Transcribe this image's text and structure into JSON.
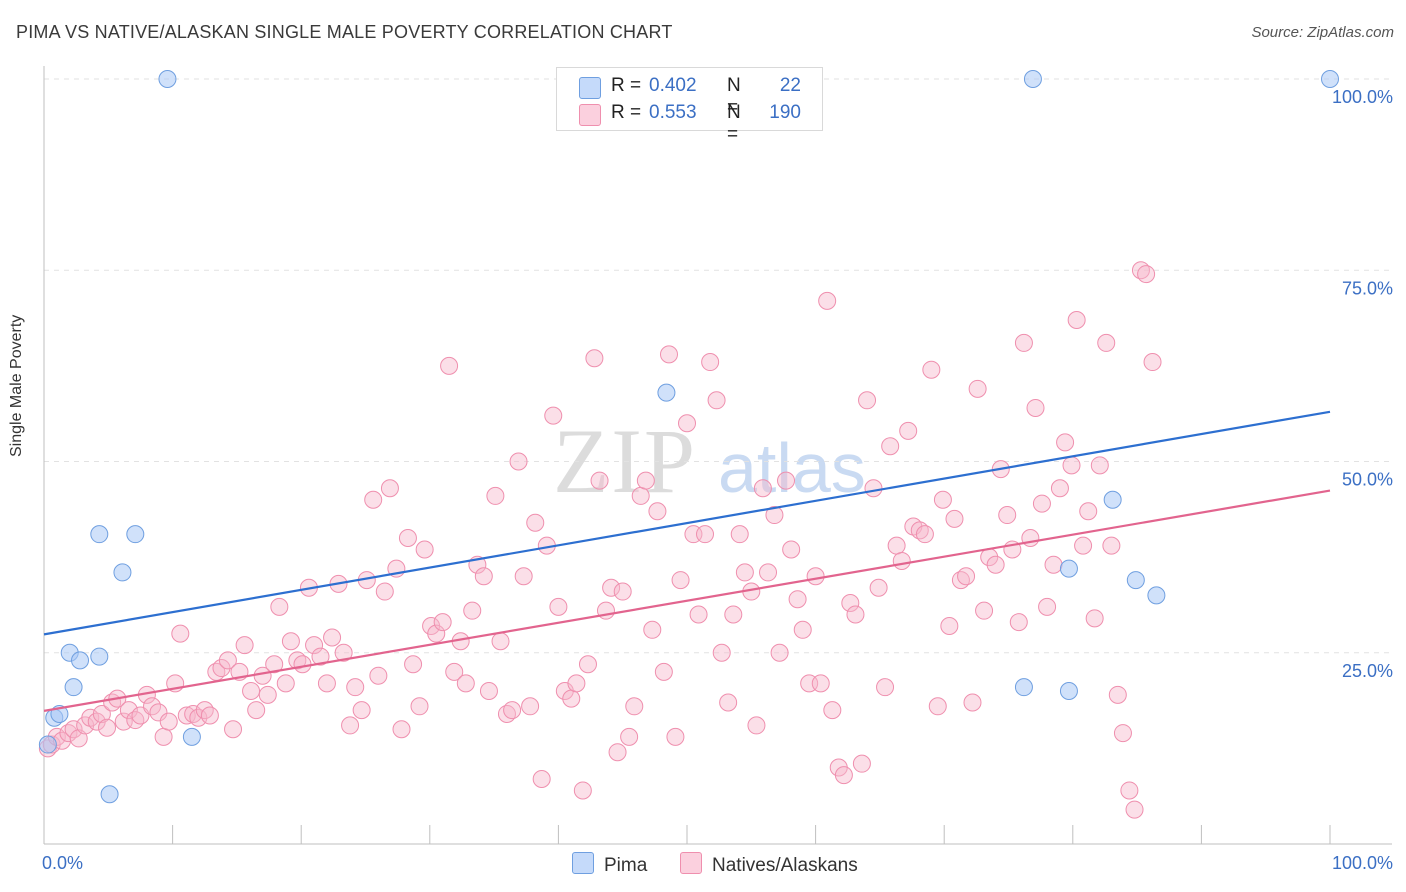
{
  "title": "PIMA VS NATIVE/ALASKAN SINGLE MALE POVERTY CORRELATION CHART",
  "source": "Source: ZipAtlas.com",
  "watermark": {
    "zip": "ZIP",
    "atlas": "atlas"
  },
  "legend_top": {
    "rows": [
      {
        "r_label": "R =",
        "r_value": "0.402",
        "n_label": "N =",
        "n_value": "22",
        "color": "#a9c8f5"
      },
      {
        "r_label": "R =",
        "r_value": "0.553",
        "n_label": "N =",
        "n_value": "190",
        "color": "#f7b8cc"
      }
    ]
  },
  "legend_bottom": [
    {
      "label": "Pima",
      "color": "#a9c8f5"
    },
    {
      "label": "Natives/Alaskans",
      "color": "#f7b8cc"
    }
  ],
  "chart_data": {
    "type": "scatter",
    "title": "PIMA VS NATIVE/ALASKAN SINGLE MALE POVERTY CORRELATION CHART",
    "xlabel": "",
    "ylabel": "Single Male Poverty",
    "xlim": [
      0,
      100
    ],
    "ylim": [
      0,
      100
    ],
    "x_tick_labels": [
      "0.0%",
      "100.0%"
    ],
    "y_tick_labels": [
      "25.0%",
      "50.0%",
      "75.0%",
      "100.0%"
    ],
    "y_ticks": [
      25,
      50,
      75,
      100
    ],
    "grid": true,
    "legend_position": "top-center",
    "series": [
      {
        "name": "Pima",
        "color": "#a9c8f5",
        "edge": "#6f9fe0",
        "line_color": "#2d6fd0",
        "trend": [
          [
            0,
            27.4
          ],
          [
            100,
            56.5
          ]
        ],
        "points": [
          [
            0.3,
            13
          ],
          [
            0.8,
            16.5
          ],
          [
            1.2,
            17
          ],
          [
            2.0,
            25
          ],
          [
            2.3,
            20.5
          ],
          [
            2.8,
            24
          ],
          [
            4.3,
            40.5
          ],
          [
            4.3,
            24.5
          ],
          [
            5.1,
            6.5
          ],
          [
            6.1,
            35.5
          ],
          [
            7.1,
            40.5
          ],
          [
            9.6,
            100
          ],
          [
            11.5,
            14
          ],
          [
            48.4,
            59
          ],
          [
            76.9,
            100
          ],
          [
            76.2,
            20.5
          ],
          [
            79.7,
            20
          ],
          [
            79.7,
            36
          ],
          [
            83.1,
            45
          ],
          [
            84.9,
            34.5
          ],
          [
            86.5,
            32.5
          ],
          [
            100,
            100
          ]
        ]
      },
      {
        "name": "Natives/Alaskans",
        "color": "#f7b8cc",
        "edge": "#ef8fae",
        "line_color": "#e2648e",
        "trend": [
          [
            0,
            17.4
          ],
          [
            100,
            46.2
          ]
        ],
        "points": [
          [
            0.3,
            12.5
          ],
          [
            0.6,
            13.0
          ],
          [
            1.0,
            14.0
          ],
          [
            1.4,
            13.5
          ],
          [
            1.9,
            14.5
          ],
          [
            2.3,
            15.0
          ],
          [
            2.7,
            13.8
          ],
          [
            3.2,
            15.5
          ],
          [
            3.6,
            16.5
          ],
          [
            4.1,
            16.0
          ],
          [
            4.5,
            17.0
          ],
          [
            4.9,
            15.2
          ],
          [
            5.3,
            18.5
          ],
          [
            5.7,
            19.0
          ],
          [
            6.2,
            16.0
          ],
          [
            6.6,
            17.5
          ],
          [
            7.1,
            16.2
          ],
          [
            7.5,
            16.8
          ],
          [
            8.0,
            19.5
          ],
          [
            8.4,
            18.0
          ],
          [
            8.9,
            17.2
          ],
          [
            9.3,
            14.0
          ],
          [
            9.7,
            16.0
          ],
          [
            10.2,
            21.0
          ],
          [
            10.6,
            27.5
          ],
          [
            11.1,
            16.8
          ],
          [
            11.6,
            17.0
          ],
          [
            12.0,
            16.5
          ],
          [
            12.5,
            17.5
          ],
          [
            12.9,
            16.8
          ],
          [
            13.4,
            22.5
          ],
          [
            13.8,
            23.0
          ],
          [
            14.3,
            24.0
          ],
          [
            14.7,
            15.0
          ],
          [
            15.2,
            22.5
          ],
          [
            15.6,
            26.0
          ],
          [
            16.1,
            20.0
          ],
          [
            16.5,
            17.5
          ],
          [
            17.0,
            22.0
          ],
          [
            17.4,
            19.5
          ],
          [
            17.9,
            23.5
          ],
          [
            18.3,
            31.0
          ],
          [
            18.8,
            21.0
          ],
          [
            19.2,
            26.5
          ],
          [
            19.7,
            24.0
          ],
          [
            20.1,
            23.5
          ],
          [
            20.6,
            33.5
          ],
          [
            21.0,
            26.0
          ],
          [
            21.5,
            24.5
          ],
          [
            22.0,
            21.0
          ],
          [
            22.4,
            27.0
          ],
          [
            22.9,
            34.0
          ],
          [
            23.3,
            25.0
          ],
          [
            23.8,
            15.5
          ],
          [
            24.2,
            20.5
          ],
          [
            24.7,
            17.5
          ],
          [
            25.1,
            34.5
          ],
          [
            25.6,
            45.0
          ],
          [
            26.0,
            22.0
          ],
          [
            26.5,
            33.0
          ],
          [
            26.9,
            46.5
          ],
          [
            27.4,
            36.0
          ],
          [
            27.8,
            15.0
          ],
          [
            28.3,
            40.0
          ],
          [
            28.7,
            23.5
          ],
          [
            29.2,
            18.0
          ],
          [
            29.6,
            38.5
          ],
          [
            30.1,
            28.5
          ],
          [
            30.5,
            27.5
          ],
          [
            31.0,
            29.0
          ],
          [
            31.5,
            62.5
          ],
          [
            31.9,
            22.5
          ],
          [
            32.4,
            26.5
          ],
          [
            32.8,
            21.0
          ],
          [
            33.3,
            30.5
          ],
          [
            33.7,
            36.5
          ],
          [
            34.2,
            35.0
          ],
          [
            34.6,
            20.0
          ],
          [
            35.1,
            45.5
          ],
          [
            35.5,
            26.5
          ],
          [
            36.0,
            17.0
          ],
          [
            36.4,
            17.5
          ],
          [
            36.9,
            50.0
          ],
          [
            37.3,
            35.0
          ],
          [
            37.8,
            18.0
          ],
          [
            38.2,
            42.0
          ],
          [
            38.7,
            8.5
          ],
          [
            39.1,
            39.0
          ],
          [
            39.6,
            56.0
          ],
          [
            40.0,
            31.0
          ],
          [
            40.5,
            20.0
          ],
          [
            41.0,
            19.0
          ],
          [
            41.4,
            21.0
          ],
          [
            41.9,
            7.0
          ],
          [
            42.3,
            23.5
          ],
          [
            42.8,
            63.5
          ],
          [
            43.2,
            47.5
          ],
          [
            43.7,
            30.5
          ],
          [
            44.1,
            33.5
          ],
          [
            44.6,
            12.0
          ],
          [
            45.0,
            33.0
          ],
          [
            45.5,
            14.0
          ],
          [
            45.9,
            18.0
          ],
          [
            46.4,
            45.5
          ],
          [
            46.8,
            47.5
          ],
          [
            47.3,
            28.0
          ],
          [
            47.7,
            43.5
          ],
          [
            48.2,
            22.5
          ],
          [
            48.6,
            64.0
          ],
          [
            49.1,
            14.0
          ],
          [
            49.5,
            34.5
          ],
          [
            50.0,
            55.0
          ],
          [
            50.5,
            40.5
          ],
          [
            50.9,
            30.0
          ],
          [
            51.4,
            40.5
          ],
          [
            51.8,
            63.0
          ],
          [
            52.3,
            58.0
          ],
          [
            52.7,
            25.0
          ],
          [
            53.2,
            18.5
          ],
          [
            53.6,
            30.0
          ],
          [
            54.1,
            40.5
          ],
          [
            54.5,
            35.5
          ],
          [
            55.0,
            33.0
          ],
          [
            55.4,
            15.5
          ],
          [
            55.9,
            46.5
          ],
          [
            56.3,
            35.5
          ],
          [
            56.8,
            43.0
          ],
          [
            57.2,
            25.0
          ],
          [
            57.7,
            47.5
          ],
          [
            58.1,
            38.5
          ],
          [
            58.6,
            32.0
          ],
          [
            59.0,
            28.0
          ],
          [
            59.5,
            21.0
          ],
          [
            60.0,
            35.0
          ],
          [
            60.4,
            21.0
          ],
          [
            60.9,
            71.0
          ],
          [
            61.3,
            17.5
          ],
          [
            61.8,
            10.0
          ],
          [
            62.2,
            9.0
          ],
          [
            62.7,
            31.5
          ],
          [
            63.1,
            30.0
          ],
          [
            63.6,
            10.5
          ],
          [
            64.0,
            58.0
          ],
          [
            64.5,
            46.5
          ],
          [
            64.9,
            33.5
          ],
          [
            65.4,
            20.5
          ],
          [
            65.8,
            52.0
          ],
          [
            66.3,
            39.0
          ],
          [
            66.7,
            37.0
          ],
          [
            67.2,
            54.0
          ],
          [
            67.6,
            41.5
          ],
          [
            68.1,
            41.0
          ],
          [
            68.5,
            40.5
          ],
          [
            69.0,
            62.0
          ],
          [
            69.5,
            18.0
          ],
          [
            69.9,
            45.0
          ],
          [
            70.4,
            28.5
          ],
          [
            70.8,
            42.5
          ],
          [
            71.3,
            34.5
          ],
          [
            71.7,
            35.0
          ],
          [
            72.2,
            18.5
          ],
          [
            72.6,
            59.5
          ],
          [
            73.1,
            30.5
          ],
          [
            73.5,
            37.5
          ],
          [
            74.0,
            36.5
          ],
          [
            74.4,
            49.0
          ],
          [
            74.9,
            43.0
          ],
          [
            75.3,
            38.5
          ],
          [
            75.8,
            29.0
          ],
          [
            76.2,
            65.5
          ],
          [
            76.7,
            40.0
          ],
          [
            77.1,
            57.0
          ],
          [
            77.6,
            44.5
          ],
          [
            78.0,
            31.0
          ],
          [
            78.5,
            36.5
          ],
          [
            79.0,
            46.5
          ],
          [
            79.4,
            52.5
          ],
          [
            79.9,
            49.5
          ],
          [
            80.3,
            68.5
          ],
          [
            80.8,
            39.0
          ],
          [
            81.2,
            43.5
          ],
          [
            81.7,
            29.5
          ],
          [
            82.1,
            49.5
          ],
          [
            82.6,
            65.5
          ],
          [
            83.0,
            39.0
          ],
          [
            83.5,
            19.5
          ],
          [
            83.9,
            14.5
          ],
          [
            84.4,
            7.0
          ],
          [
            84.8,
            4.5
          ],
          [
            85.3,
            75.0
          ],
          [
            85.7,
            74.5
          ],
          [
            86.2,
            63.0
          ]
        ]
      }
    ]
  }
}
